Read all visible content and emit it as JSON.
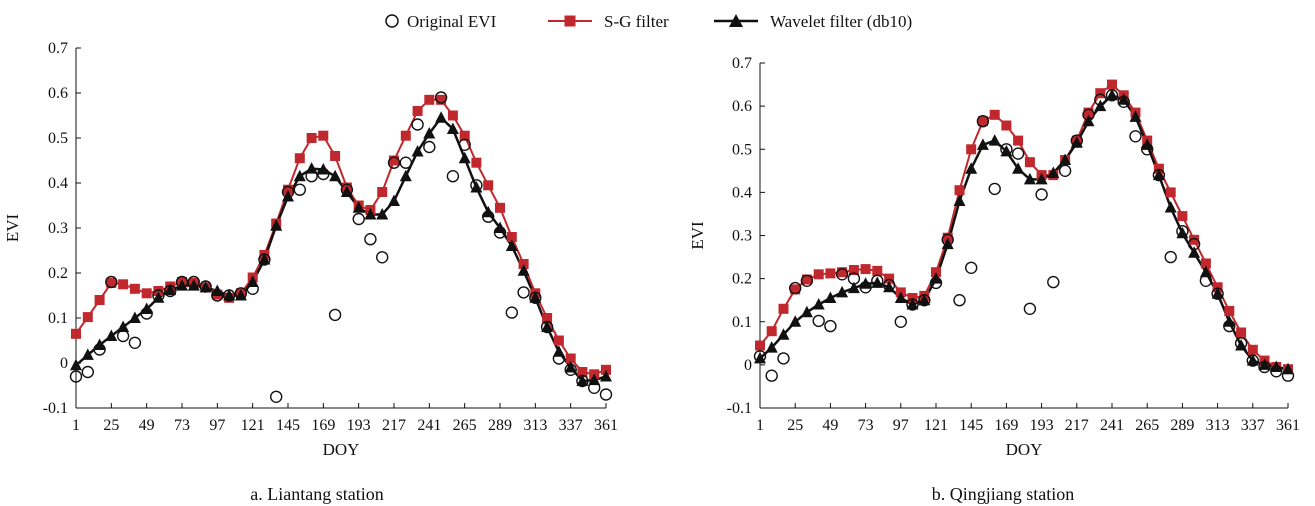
{
  "legend": {
    "original": "Original EVI",
    "sg": "S-G filter",
    "wavelet": "Wavelet filter (db10)"
  },
  "colors": {
    "sg": "#c0282d",
    "wavelet": "#111111",
    "original": "#111111"
  },
  "chart_data": [
    {
      "type": "line",
      "caption": "a. Liantang station",
      "xlabel": "DOY",
      "ylabel": "EVI",
      "xlim": [
        1,
        361
      ],
      "ylim": [
        -0.1,
        0.7
      ],
      "xticks": [
        1,
        25,
        49,
        73,
        97,
        121,
        145,
        169,
        193,
        217,
        241,
        265,
        289,
        313,
        337,
        361
      ],
      "yticks": [
        -0.1,
        0,
        0.1,
        0.2,
        0.3,
        0.4,
        0.5,
        0.6,
        0.7
      ],
      "ytick_labels": [
        "-0.1",
        "0",
        "0.1",
        "0.2",
        "0.3",
        "0.4",
        "0.5",
        "0.6",
        "0.7"
      ],
      "x": [
        1,
        9,
        17,
        25,
        33,
        41,
        49,
        57,
        65,
        73,
        81,
        89,
        97,
        105,
        113,
        121,
        129,
        137,
        145,
        153,
        161,
        169,
        177,
        185,
        193,
        201,
        209,
        217,
        225,
        233,
        241,
        249,
        257,
        265,
        273,
        281,
        289,
        297,
        305,
        313,
        321,
        329,
        337,
        345,
        353,
        361
      ],
      "series": [
        {
          "name": "Original EVI",
          "values": [
            -0.03,
            -0.02,
            0.03,
            0.18,
            0.06,
            0.045,
            0.11,
            0.15,
            0.16,
            0.18,
            0.18,
            0.17,
            0.15,
            0.15,
            0.155,
            0.165,
            0.23,
            -0.075,
            0.38,
            0.385,
            0.415,
            0.42,
            0.107,
            0.385,
            0.32,
            0.275,
            0.235,
            0.445,
            0.445,
            0.53,
            0.48,
            0.59,
            0.415,
            0.485,
            0.395,
            0.325,
            0.29,
            0.112,
            0.157,
            0.145,
            0.08,
            0.01,
            -0.015,
            -0.04,
            -0.055,
            -0.07
          ]
        },
        {
          "name": "S-G filter",
          "values": [
            0.065,
            0.102,
            0.14,
            0.178,
            0.175,
            0.165,
            0.155,
            0.16,
            0.17,
            0.18,
            0.178,
            0.168,
            0.152,
            0.145,
            0.155,
            0.19,
            0.24,
            0.31,
            0.385,
            0.455,
            0.5,
            0.505,
            0.46,
            0.39,
            0.35,
            0.34,
            0.38,
            0.45,
            0.505,
            0.56,
            0.585,
            0.585,
            0.55,
            0.505,
            0.445,
            0.395,
            0.345,
            0.28,
            0.22,
            0.155,
            0.1,
            0.05,
            0.01,
            -0.02,
            -0.025,
            -0.015
          ]
        },
        {
          "name": "Wavelet filter (db10)",
          "values": [
            -0.005,
            0.018,
            0.04,
            0.06,
            0.08,
            0.1,
            0.12,
            0.145,
            0.162,
            0.172,
            0.172,
            0.168,
            0.16,
            0.15,
            0.15,
            0.18,
            0.23,
            0.305,
            0.37,
            0.415,
            0.432,
            0.43,
            0.415,
            0.38,
            0.345,
            0.33,
            0.33,
            0.36,
            0.415,
            0.47,
            0.51,
            0.545,
            0.52,
            0.455,
            0.39,
            0.335,
            0.3,
            0.26,
            0.205,
            0.145,
            0.08,
            0.025,
            -0.01,
            -0.04,
            -0.038,
            -0.03
          ]
        }
      ]
    },
    {
      "type": "line",
      "caption": "b. Qingjiang station",
      "xlabel": "DOY",
      "ylabel": "EVI",
      "xlim": [
        1,
        361
      ],
      "ylim": [
        -0.1,
        0.7
      ],
      "xticks": [
        1,
        25,
        49,
        73,
        97,
        121,
        145,
        169,
        193,
        217,
        241,
        265,
        289,
        313,
        337,
        361
      ],
      "yticks": [
        -0.1,
        0,
        0.1,
        0.2,
        0.3,
        0.4,
        0.5,
        0.6,
        0.7
      ],
      "ytick_labels": [
        "-0.1",
        "0",
        "0.1",
        "0.2",
        "0.3",
        "0.4",
        "0.5",
        "0.6",
        "0.7"
      ],
      "x": [
        1,
        9,
        17,
        25,
        33,
        41,
        49,
        57,
        65,
        73,
        81,
        89,
        97,
        105,
        113,
        121,
        129,
        137,
        145,
        153,
        161,
        169,
        177,
        185,
        193,
        201,
        209,
        217,
        225,
        233,
        241,
        249,
        257,
        265,
        273,
        281,
        289,
        297,
        305,
        313,
        321,
        329,
        337,
        345,
        353,
        361
      ],
      "series": [
        {
          "name": "Original EVI",
          "values": [
            0.02,
            -0.025,
            0.015,
            0.178,
            0.195,
            0.102,
            0.09,
            0.21,
            0.2,
            0.18,
            0.195,
            0.185,
            0.1,
            0.14,
            0.15,
            0.19,
            0.29,
            0.15,
            0.225,
            0.565,
            0.408,
            0.5,
            0.49,
            0.13,
            0.395,
            0.192,
            0.45,
            0.52,
            0.58,
            0.615,
            0.625,
            0.61,
            0.53,
            0.5,
            0.44,
            0.25,
            0.31,
            0.28,
            0.195,
            0.165,
            0.09,
            0.05,
            0.01,
            -0.005,
            -0.015,
            -0.025
          ]
        },
        {
          "name": "S-G filter",
          "values": [
            0.045,
            0.078,
            0.13,
            0.175,
            0.198,
            0.21,
            0.212,
            0.215,
            0.22,
            0.222,
            0.218,
            0.2,
            0.168,
            0.155,
            0.16,
            0.215,
            0.295,
            0.405,
            0.5,
            0.565,
            0.58,
            0.555,
            0.52,
            0.47,
            0.44,
            0.44,
            0.475,
            0.52,
            0.585,
            0.63,
            0.65,
            0.625,
            0.585,
            0.52,
            0.455,
            0.4,
            0.345,
            0.29,
            0.235,
            0.18,
            0.125,
            0.075,
            0.035,
            0.01,
            -0.005,
            -0.01
          ]
        },
        {
          "name": "Wavelet filter (db10)",
          "values": [
            0.015,
            0.04,
            0.07,
            0.1,
            0.122,
            0.14,
            0.155,
            0.168,
            0.178,
            0.188,
            0.19,
            0.18,
            0.155,
            0.14,
            0.15,
            0.2,
            0.28,
            0.38,
            0.455,
            0.51,
            0.52,
            0.495,
            0.455,
            0.43,
            0.43,
            0.445,
            0.475,
            0.515,
            0.565,
            0.6,
            0.625,
            0.615,
            0.575,
            0.51,
            0.44,
            0.365,
            0.305,
            0.26,
            0.215,
            0.165,
            0.1,
            0.045,
            0.01,
            0.0,
            -0.005,
            -0.01
          ]
        }
      ]
    }
  ]
}
